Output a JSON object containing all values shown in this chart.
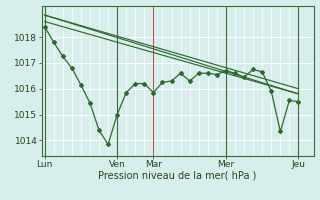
{
  "bg_color": "#d8eeed",
  "grid_color": "#ffffff",
  "line_color": "#2d6a2d",
  "marker_color": "#2d6a2d",
  "xlabel": "Pression niveau de la mer( hPa )",
  "yticks": [
    1014,
    1015,
    1016,
    1017,
    1018
  ],
  "ylim": [
    1013.4,
    1019.2
  ],
  "xlim": [
    -1,
    89
  ],
  "xtick_labels": [
    "Lun",
    "Ven",
    "Mar",
    "Mer",
    "Jeu"
  ],
  "xtick_positions": [
    0,
    24,
    36,
    60,
    84
  ],
  "vlines_dark": [
    0,
    24,
    60,
    84
  ],
  "vlines_red": [
    36
  ],
  "series1_x": [
    0,
    3,
    6,
    9,
    12,
    15,
    18,
    21,
    24,
    27,
    30,
    33,
    36,
    39,
    42,
    45,
    48,
    51,
    54,
    57,
    60,
    63,
    66,
    69,
    72,
    75,
    78,
    81,
    84
  ],
  "series1_y": [
    1018.4,
    1017.8,
    1017.25,
    1016.8,
    1016.15,
    1015.45,
    1014.4,
    1013.85,
    1015.0,
    1015.85,
    1016.2,
    1016.2,
    1015.85,
    1016.25,
    1016.3,
    1016.6,
    1016.3,
    1016.6,
    1016.6,
    1016.55,
    1016.7,
    1016.6,
    1016.45,
    1016.75,
    1016.65,
    1015.9,
    1014.35,
    1015.55,
    1015.5
  ],
  "series2_x": [
    0,
    84
  ],
  "series2_y": [
    1018.85,
    1015.8
  ],
  "series3_x": [
    0,
    84
  ],
  "series3_y": [
    1018.85,
    1016.0
  ],
  "series4_x": [
    0,
    84
  ],
  "series4_y": [
    1018.6,
    1015.8
  ]
}
